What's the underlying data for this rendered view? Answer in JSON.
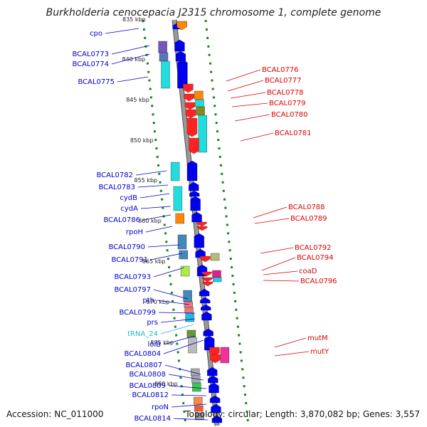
{
  "title": "Burkholderia cenocepacia J2315 chromosome 1, complete genome",
  "footer": {
    "accession": "Accession: NC_011000",
    "stats": "Topology: circular; Length: 3,870,082 bp; Genes: 3,557"
  },
  "colors": {
    "forward_label": "#0000cc",
    "reverse_label": "#dd0000",
    "trna_label": "#22bbcc",
    "backbone": "#999999",
    "tick_track": "#118811"
  },
  "top_kbp": "835 kbp",
  "kbp_ticks": [
    "840 kbp",
    "845 kbp",
    "850 kbp",
    "855 kbp",
    "860 kbp",
    "865 kbp",
    "870 kbp",
    "875 kbp",
    "880 kbp"
  ],
  "forward_labels": [
    "cpo",
    "BCAL0773",
    "BCAL0774",
    "BCAL0775",
    "BCAL0782",
    "BCAL0783",
    "cydB",
    "cydA",
    "BCAL0786",
    "rpoH",
    "BCAL0790",
    "BCAL0791",
    "BCAL0793",
    "BCAL0797",
    "pth",
    "BCAL0799",
    "prs",
    "tRNA_24",
    "lolB",
    "BCAL0804",
    "BCAL0807",
    "BCAL0808",
    "BCAL0809",
    "BCAL0812",
    "rpoN",
    "BCAL0814"
  ],
  "reverse_labels": [
    "BCAL0776",
    "BCAL0777",
    "BCAL0778",
    "BCAL0779",
    "BCAL0780",
    "BCAL0781",
    "BCAL0788",
    "BCAL0789",
    "BCAL0792",
    "BCAL0794",
    "coaD",
    "BCAL0796",
    "mutM",
    "mutY"
  ]
}
